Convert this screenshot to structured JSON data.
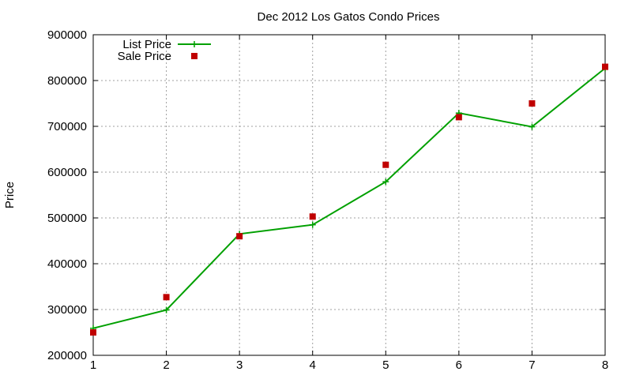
{
  "chart_data": {
    "type": "line",
    "title": "Dec 2012 Los Gatos Condo Prices",
    "xlabel": "",
    "ylabel": "Price",
    "x": [
      1,
      2,
      3,
      4,
      5,
      6,
      7,
      8
    ],
    "xlim": [
      1,
      8
    ],
    "ylim": [
      200000,
      900000
    ],
    "xticks": [
      "1",
      "2",
      "3",
      "4",
      "5",
      "6",
      "7",
      "8"
    ],
    "yticks": [
      "200000",
      "300000",
      "400000",
      "500000",
      "600000",
      "700000",
      "800000",
      "900000"
    ],
    "grid": true,
    "legend_position": "top-left",
    "series": [
      {
        "name": "List Price",
        "style": "line+cross",
        "color": "#00a000",
        "values": [
          259000,
          299000,
          465000,
          485000,
          579000,
          729000,
          699000,
          827000
        ]
      },
      {
        "name": "Sale Price",
        "style": "square",
        "color": "#c00000",
        "values": [
          250000,
          327000,
          460000,
          503000,
          616000,
          720000,
          750000,
          830000
        ]
      }
    ]
  }
}
